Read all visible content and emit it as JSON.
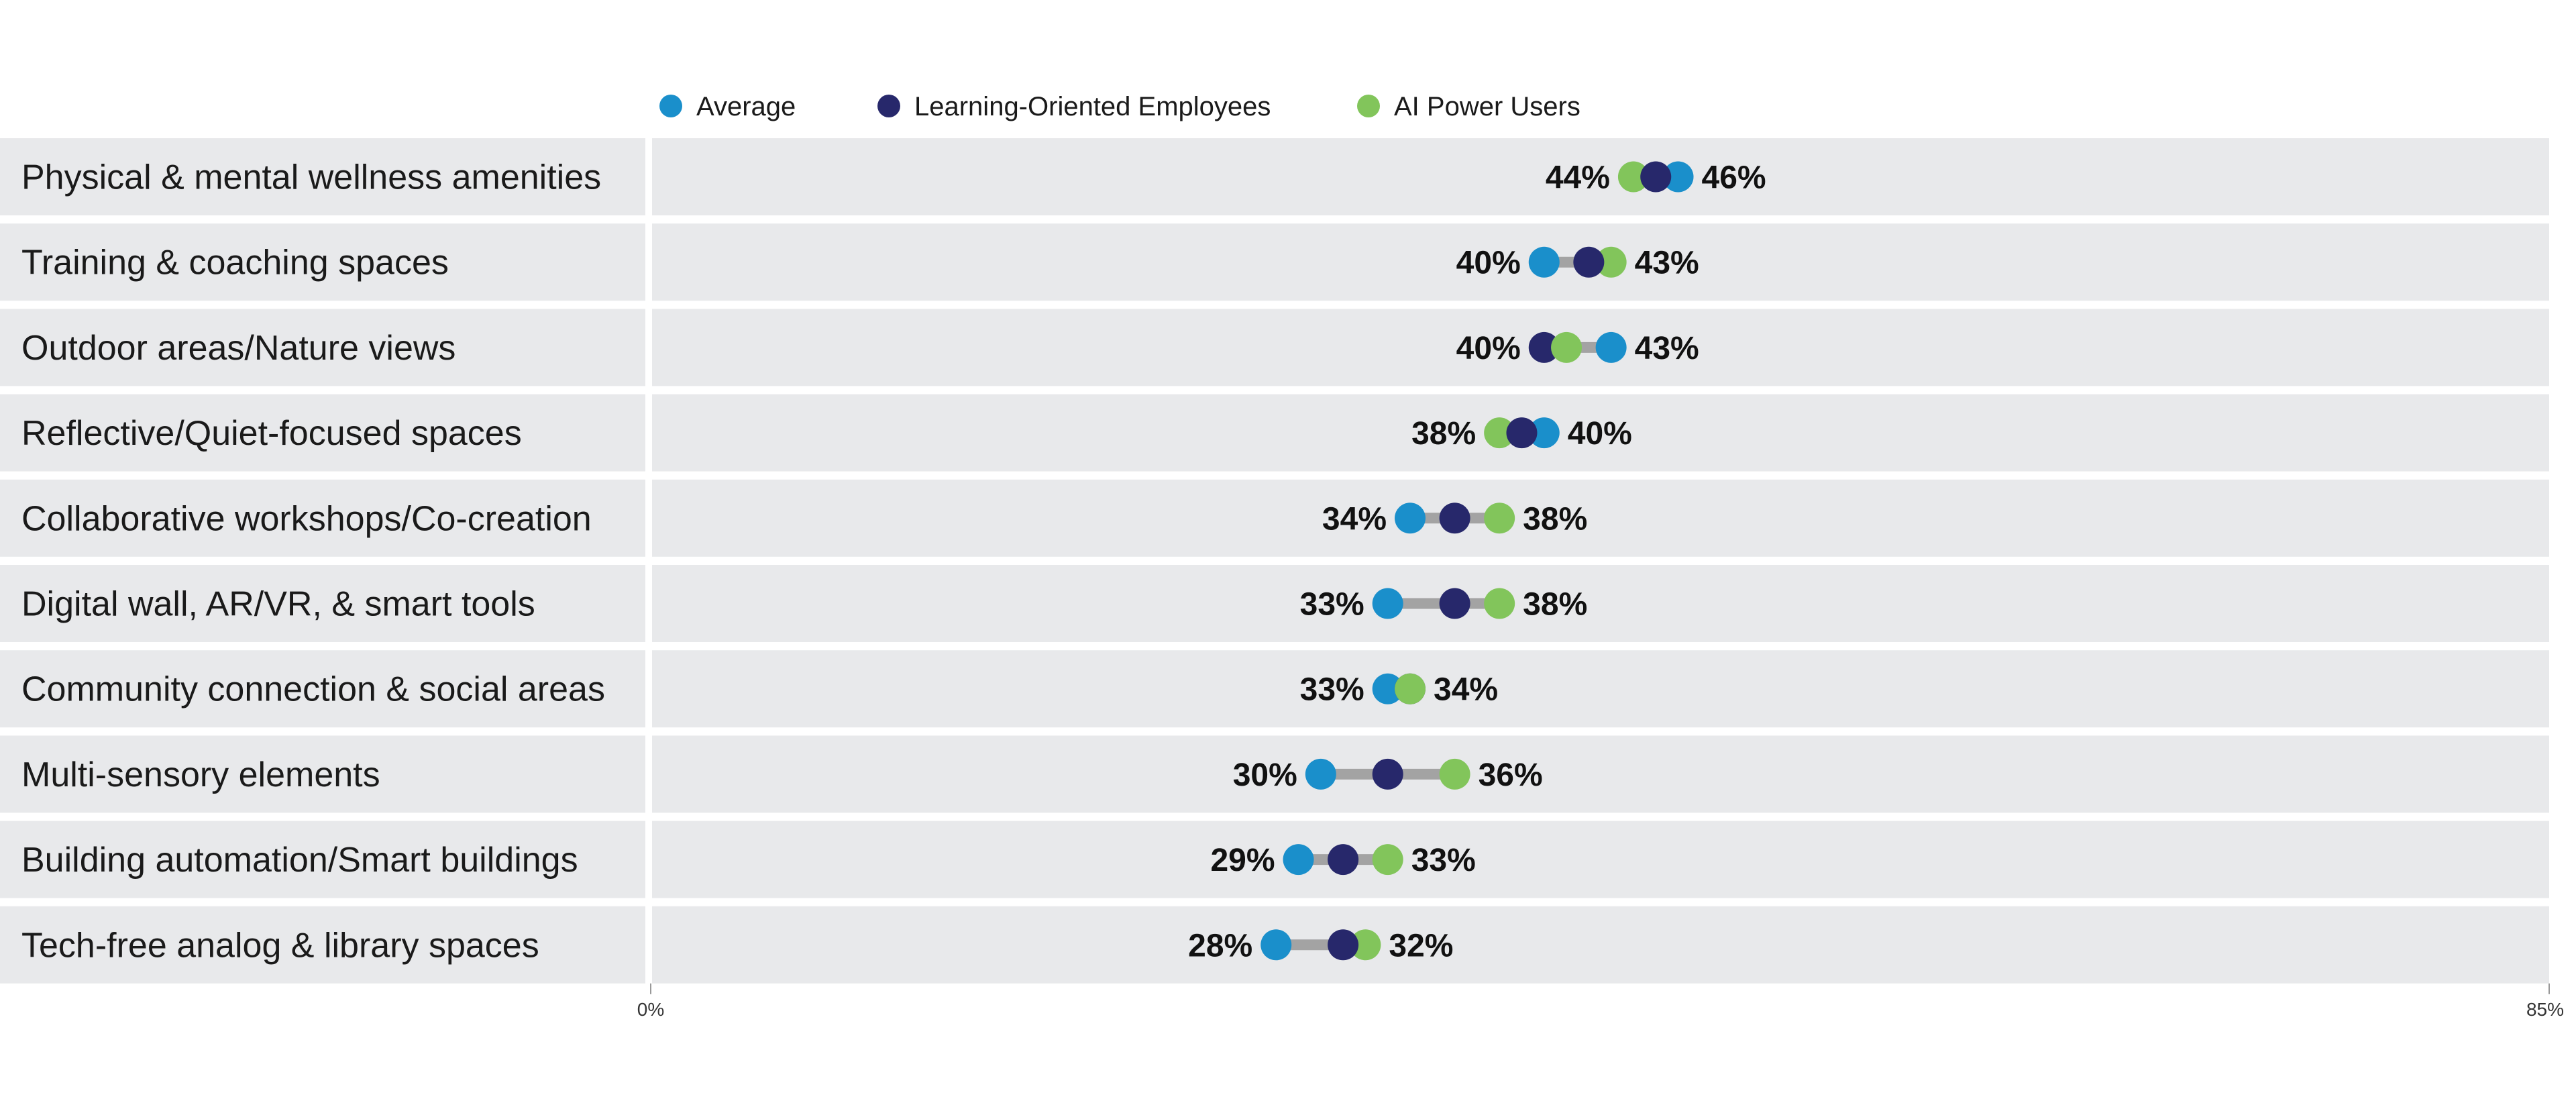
{
  "chart_data": {
    "type": "dumbbell",
    "categories": [
      "Physical & mental wellness amenities",
      "Training & coaching spaces",
      "Outdoor areas/Nature views",
      "Reflective/Quiet-focused spaces",
      "Collaborative workshops/Co-creation",
      "Digital wall, AR/VR, & smart tools",
      "Community connection & social areas",
      "Multi-sensory elements",
      "Building automation/Smart buildings",
      "Tech-free analog & library spaces"
    ],
    "series": [
      {
        "name": "Average",
        "color": "#1A8FCB",
        "values": [
          46,
          40,
          43,
          40,
          34,
          33,
          33,
          30,
          29,
          28
        ]
      },
      {
        "name": "Learning-Oriented Employees",
        "color": "#27286B",
        "values": [
          45,
          42,
          40,
          39,
          36,
          36,
          34,
          33,
          31,
          31
        ]
      },
      {
        "name": "AI Power Users",
        "color": "#82C55B",
        "values": [
          44,
          43,
          41,
          38,
          38,
          38,
          34,
          36,
          33,
          32
        ]
      }
    ],
    "range_labels": [
      {
        "low": "44%",
        "high": "46%"
      },
      {
        "low": "40%",
        "high": "43%"
      },
      {
        "low": "40%",
        "high": "43%"
      },
      {
        "low": "38%",
        "high": "40%"
      },
      {
        "low": "34%",
        "high": "38%"
      },
      {
        "low": "33%",
        "high": "38%"
      },
      {
        "low": "33%",
        "high": "34%"
      },
      {
        "low": "30%",
        "high": "36%"
      },
      {
        "low": "29%",
        "high": "33%"
      },
      {
        "low": "28%",
        "high": "32%"
      }
    ],
    "x_ticks": [
      "0%",
      "85%"
    ],
    "xlim": [
      0,
      85
    ],
    "legend_position": "top",
    "grid": false,
    "colors": {
      "row_background": "#E8E9EB",
      "connector": "#A3A3A3"
    }
  }
}
